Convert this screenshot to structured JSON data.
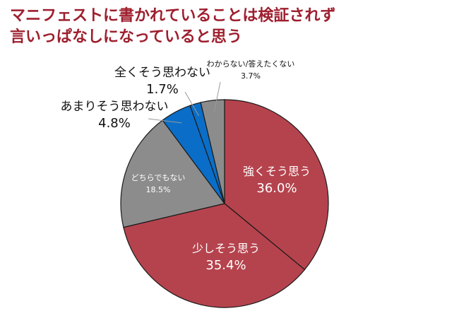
{
  "title_lines": [
    "マニフェストに書かれていることは検証されず",
    "言いっぱなしになっていると思う"
  ],
  "chart_data": {
    "type": "pie",
    "start_angle_deg": 0,
    "direction": "clockwise",
    "legend": "none",
    "slices": [
      {
        "label": "強くそう思う",
        "value": 36.0,
        "value_text": "36.0%",
        "color": "#b5434d"
      },
      {
        "label": "少しそう思う",
        "value": 35.4,
        "value_text": "35.4%",
        "color": "#b5434d"
      },
      {
        "label": "どちらでもない",
        "value": 18.5,
        "value_text": "18.5%",
        "color": "#8c8c8c"
      },
      {
        "label": "あまりそう思わない",
        "value": 4.8,
        "value_text": "4.8%",
        "color": "#0a6ec8"
      },
      {
        "label": "全くそう思わない",
        "value": 1.7,
        "value_text": "1.7%",
        "color": "#0a6ec8"
      },
      {
        "label": "わからない/答えたくない",
        "value": 3.7,
        "value_text": "3.7%",
        "color": "#8c8c8c"
      }
    ]
  }
}
